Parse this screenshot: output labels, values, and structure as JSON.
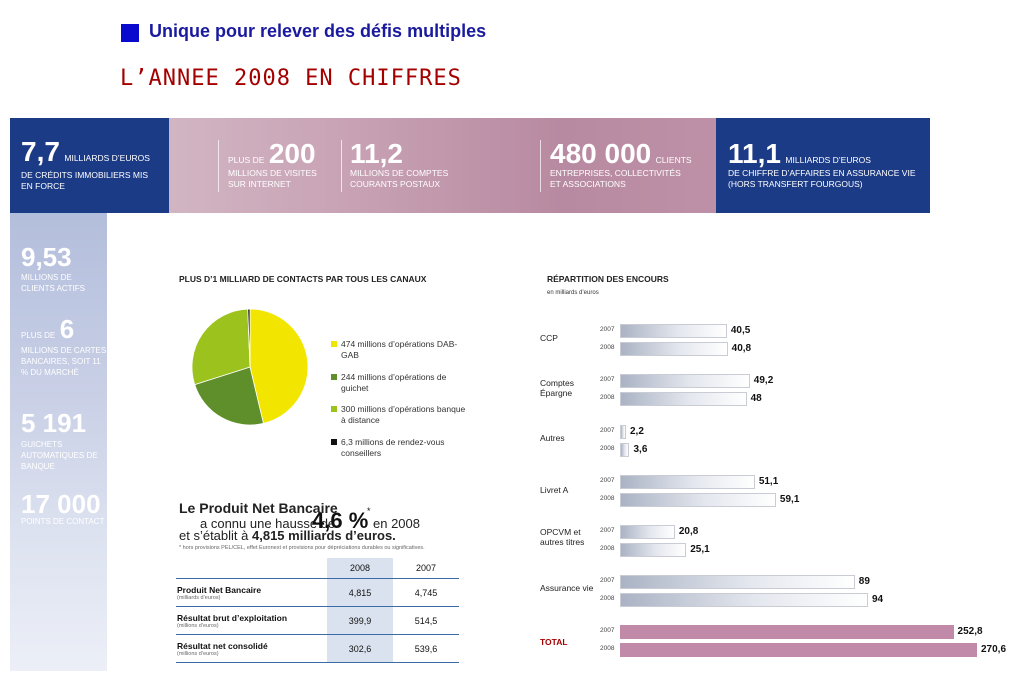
{
  "header": {
    "title": "Unique pour relever des défis multiples"
  },
  "section_title": "L’ANNEE 2008 EN CHIFFRES",
  "top_kpis": [
    {
      "prefix": "",
      "value": "7,7",
      "unit": "MILLIARDS D’EUROS",
      "desc": "DE CRÉDITS IMMOBILIERS MIS EN FORCE"
    },
    {
      "prefix": "PLUS DE",
      "value": "200",
      "unit": "",
      "desc": "MILLIONS DE VISITES SUR INTERNET"
    },
    {
      "prefix": "",
      "value": "11,2",
      "unit": "",
      "desc": "MILLIONS DE COMPTES COURANTS POSTAUX"
    },
    {
      "prefix": "",
      "value": "480 000",
      "unit": "CLIENTS",
      "desc": "ENTREPRISES, COLLECTIVITÉS ET ASSOCIATIONS"
    },
    {
      "prefix": "",
      "value": "11,1",
      "unit": "MILLIARDS D’EUROS",
      "desc": "DE CHIFFRE D’AFFAIRES EN ASSURANCE VIE (HORS TRANSFERT FOURGOUS)"
    }
  ],
  "left_kpis": [
    {
      "prefix": "",
      "value": "9,53",
      "desc": "MILLIONS DE CLIENTS ACTIFS"
    },
    {
      "prefix": "PLUS DE",
      "value": "6",
      "desc": "MILLIONS DE CARTES BANCAIRES, SOIT 11 % DU MARCHÉ"
    },
    {
      "prefix": "",
      "value": "5 191",
      "desc": "GUICHETS AUTOMATIQUES DE BANQUE"
    },
    {
      "prefix": "",
      "value": "17 000",
      "desc": "POINTS DE CONTACT"
    }
  ],
  "pnb": {
    "line1": "Le Produit Net Bancaire",
    "line2": "a connu une hausse de",
    "pct": "4,6 %",
    "star": "*",
    "tail": "en 2008",
    "line3_pre": "et s’établit à",
    "line3_bold": "4,815 milliards d’euros.",
    "note": "* hors provisions PEL/CEL, effet Euronext et provisions pour dépréciations durables ou significatives."
  },
  "fin_table": {
    "headers": [
      "",
      "2008",
      "2007"
    ],
    "rows": [
      {
        "label": "Produit Net Bancaire",
        "sub": "(milliards d’euros)",
        "v2008": "4,815",
        "v2007": "4,745"
      },
      {
        "label": "Résultat brut d’exploitation",
        "sub": "(millions d’euros)",
        "v2008": "399,9",
        "v2007": "514,5"
      },
      {
        "label": "Résultat net consolidé",
        "sub": "(millions d’euros)",
        "v2008": "302,6",
        "v2007": "539,6"
      }
    ]
  },
  "chart_data": [
    {
      "type": "pie",
      "title": "PLUS D’1 MILLIARD DE CONTACTS PAR TOUS LES CANAUX",
      "legend_position": "right",
      "slices": [
        {
          "label": "474 millions d’opérations DAB-GAB",
          "value": 474,
          "color": "#f2e600"
        },
        {
          "label": "244 millions d’opérations de guichet",
          "value": 244,
          "color": "#5f8f2a"
        },
        {
          "label": "300 millions d’opérations banque à distance",
          "value": 300,
          "color": "#9bc21d"
        },
        {
          "label": "6,3 millions de rendez-vous conseillers",
          "value": 6.3,
          "color": "#111111"
        }
      ]
    },
    {
      "type": "bar",
      "orientation": "horizontal",
      "title": "RÉPARTITION DES ENCOURS",
      "subtitle": "en milliards d’euros",
      "categories": [
        "CCP",
        "Comptes Épargne",
        "Autres",
        "Livret A",
        "OPCVM et autres titres",
        "Assurance vie",
        "TOTAL"
      ],
      "series": [
        {
          "name": "2007",
          "values": [
            40.5,
            49.2,
            2.2,
            51.1,
            20.8,
            89,
            252.8
          ]
        },
        {
          "name": "2008",
          "values": [
            40.8,
            48,
            3.6,
            59.1,
            25.1,
            94,
            270.6
          ]
        }
      ],
      "value_labels": {
        "2007": [
          "40,5",
          "49,2",
          "2,2",
          "51,1",
          "20,8",
          "89",
          "252,8"
        ],
        "2008": [
          "40,8",
          "48",
          "3,6",
          "59,1",
          "25,1",
          "94",
          "270,6"
        ]
      },
      "colors": {
        "bar": "#d4d8e0",
        "total": "#c08aa8",
        "total_label": "#a40000"
      }
    }
  ]
}
